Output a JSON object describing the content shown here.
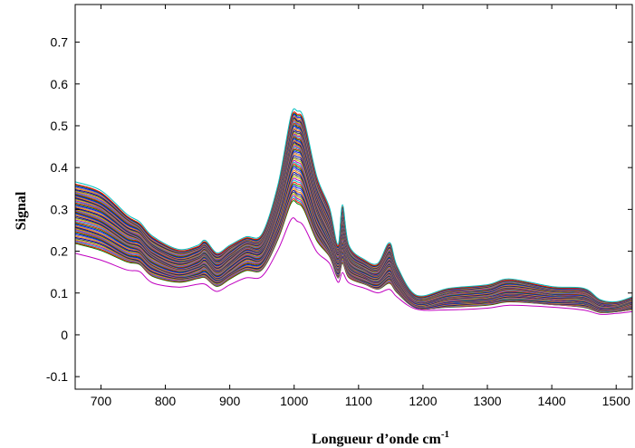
{
  "chart_data": {
    "type": "line",
    "title": "",
    "xlabel": "Longueur d’onde cm",
    "xlabel_superscript": "-1",
    "ylabel": "Signal",
    "xlim": [
      660,
      1525
    ],
    "ylim": [
      -0.13,
      0.79
    ],
    "xticks": [
      700,
      800,
      900,
      1000,
      1100,
      1200,
      1300,
      1400,
      1500
    ],
    "yticks": [
      -0.1,
      0,
      0.1,
      0.2,
      0.3,
      0.4,
      0.5,
      0.6,
      0.7
    ],
    "grid": false,
    "legend": "none",
    "x": [
      660,
      700,
      740,
      760,
      780,
      820,
      850,
      862,
      880,
      900,
      925,
      950,
      975,
      995,
      1005,
      1015,
      1035,
      1055,
      1068,
      1075,
      1085,
      1110,
      1130,
      1148,
      1160,
      1190,
      1240,
      1300,
      1335,
      1400,
      1450,
      1475,
      1500,
      1525
    ],
    "series_summary": {
      "count": 64,
      "base_curve": [
        0.285,
        0.265,
        0.225,
        0.215,
        0.185,
        0.158,
        0.17,
        0.18,
        0.15,
        0.17,
        0.2,
        0.2,
        0.3,
        0.42,
        0.43,
        0.41,
        0.3,
        0.23,
        0.165,
        0.235,
        0.17,
        0.145,
        0.135,
        0.165,
        0.128,
        0.072,
        0.085,
        0.09,
        0.1,
        0.09,
        0.085,
        0.065,
        0.065,
        0.075
      ],
      "upper_envelope": [
        0.365,
        0.345,
        0.29,
        0.27,
        0.235,
        0.205,
        0.215,
        0.225,
        0.195,
        0.215,
        0.235,
        0.24,
        0.36,
        0.525,
        0.535,
        0.515,
        0.38,
        0.305,
        0.215,
        0.31,
        0.215,
        0.18,
        0.17,
        0.22,
        0.165,
        0.095,
        0.11,
        0.12,
        0.135,
        0.115,
        0.11,
        0.085,
        0.08,
        0.09
      ],
      "lower_envelope": [
        0.195,
        0.18,
        0.155,
        0.15,
        0.125,
        0.115,
        0.12,
        0.12,
        0.105,
        0.12,
        0.135,
        0.14,
        0.205,
        0.275,
        0.27,
        0.26,
        0.2,
        0.17,
        0.125,
        0.15,
        0.125,
        0.11,
        0.1,
        0.11,
        0.09,
        0.06,
        0.06,
        0.065,
        0.07,
        0.065,
        0.06,
        0.05,
        0.05,
        0.055
      ]
    },
    "colors": [
      "#0000ff",
      "#008000",
      "#ff0000",
      "#00bfbf",
      "#bf00bf",
      "#bfbf00",
      "#404040",
      "#0000a0",
      "#ff8000",
      "#808080"
    ],
    "lowest_color": "#c000c0"
  }
}
